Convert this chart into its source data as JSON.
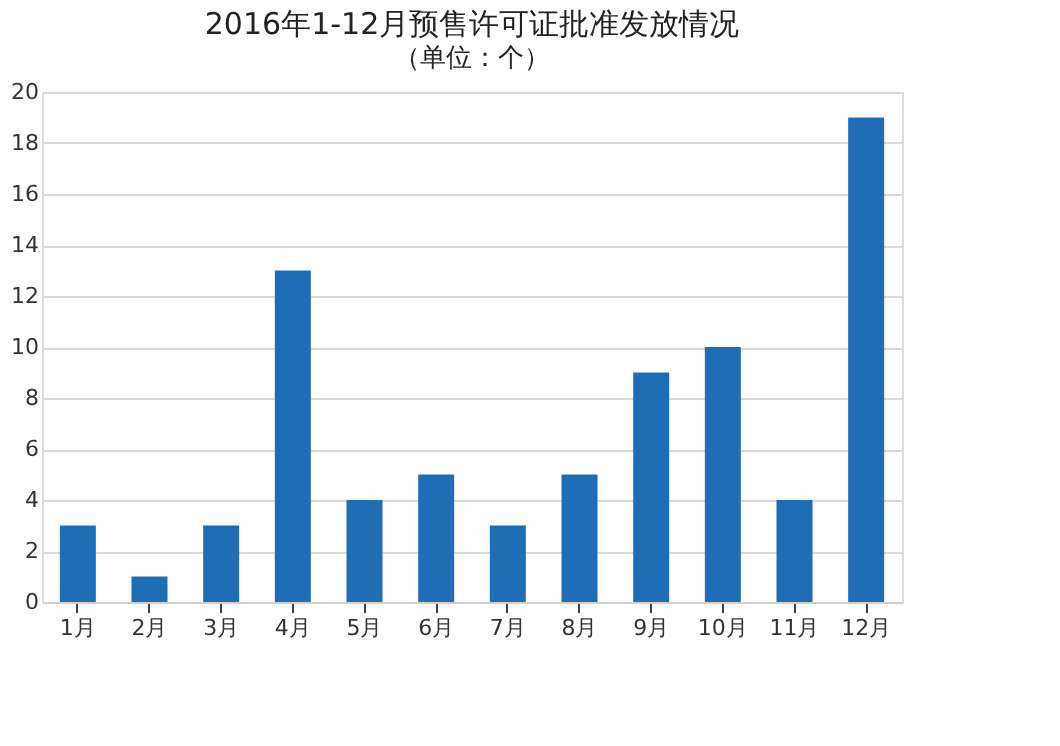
{
  "chart_data": {
    "type": "bar",
    "title": "2016年1-12月预售许可证批准发放情况",
    "subtitle": "（单位：个）",
    "categories": [
      "1月",
      "2月",
      "3月",
      "4月",
      "5月",
      "6月",
      "7月",
      "8月",
      "9月",
      "10月",
      "11月",
      "12月"
    ],
    "values": [
      3,
      1,
      3,
      13,
      4,
      5,
      3,
      5,
      9,
      10,
      4,
      19
    ],
    "color": "#1f6db5",
    "ylim": [
      0,
      20
    ],
    "yticks": [
      0,
      2,
      4,
      6,
      8,
      10,
      12,
      14,
      16,
      18,
      20
    ],
    "grid": "y"
  }
}
